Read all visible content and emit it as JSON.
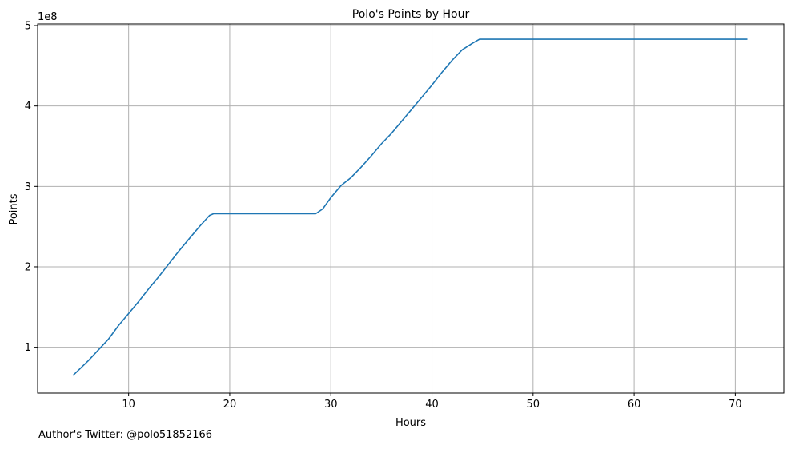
{
  "footer": {
    "note": "Author's Twitter: @polo51852166"
  },
  "chart_data": {
    "type": "line",
    "title": "Polo's Points by Hour",
    "xlabel": "Hours",
    "ylabel": "Points",
    "y_offset_text": "1e8",
    "y_scale": 100000000,
    "xlim": [
      1.0,
      74.8
    ],
    "ylim": [
      0.43,
      5.02
    ],
    "xticks": [
      10,
      20,
      30,
      40,
      50,
      60,
      70
    ],
    "yticks": [
      1,
      2,
      3,
      4,
      5
    ],
    "grid": true,
    "legend": "none",
    "line_color": "#1f77b4",
    "series": [
      {
        "x": [
          4.5,
          6,
          8,
          9,
          10,
          11,
          12,
          13,
          14,
          15,
          16,
          17,
          18,
          18.4,
          20,
          22,
          25,
          28.5,
          29.2,
          30,
          31,
          32,
          33,
          34,
          35,
          36,
          37,
          38,
          39,
          40,
          41,
          42,
          43,
          44,
          44.7,
          50,
          60,
          71.2
        ],
        "y": [
          0.65,
          0.83,
          1.1,
          1.27,
          1.42,
          1.57,
          1.73,
          1.88,
          2.04,
          2.2,
          2.35,
          2.5,
          2.64,
          2.66,
          2.66,
          2.66,
          2.66,
          2.66,
          2.72,
          2.86,
          3.01,
          3.11,
          3.24,
          3.38,
          3.53,
          3.66,
          3.81,
          3.96,
          4.11,
          4.26,
          4.42,
          4.57,
          4.7,
          4.78,
          4.83,
          4.83,
          4.83,
          4.83
        ]
      }
    ]
  }
}
